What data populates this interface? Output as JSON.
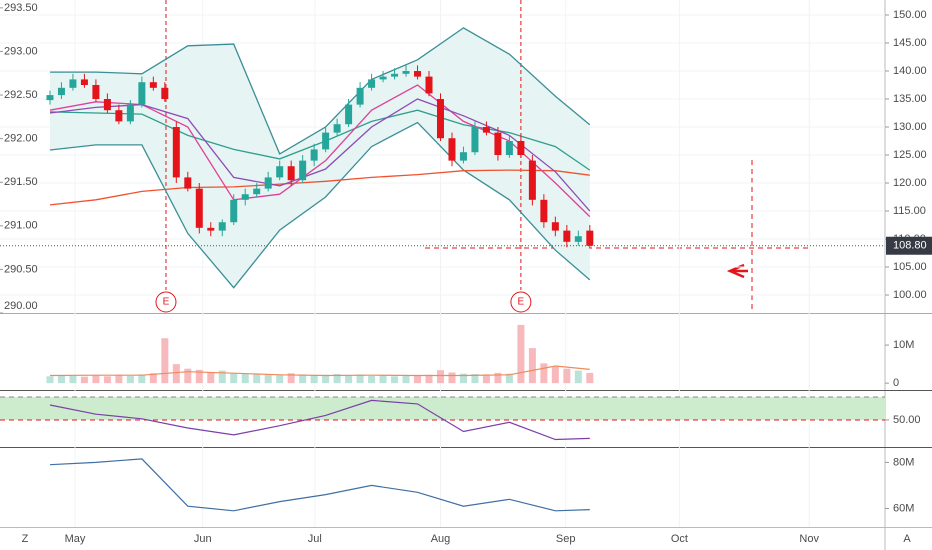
{
  "time_axis": {
    "xlim": [
      -4.35,
      72.7
    ],
    "xticks": [
      {
        "value": 2.18,
        "label": "May"
      },
      {
        "value": 13.3,
        "label": "Jun"
      },
      {
        "value": 23.06,
        "label": "Jul"
      },
      {
        "value": 34.0,
        "label": "Aug"
      },
      {
        "value": 44.9,
        "label": "Sep"
      },
      {
        "value": 54.8,
        "label": "Oct"
      },
      {
        "value": 66.1,
        "label": "Nov"
      }
    ]
  },
  "corner_labels": [
    "Z",
    "A"
  ],
  "chart_data": [
    {
      "type": "candlestick",
      "x": [
        0,
        1,
        2,
        3,
        4,
        5,
        6,
        7,
        8,
        9,
        10,
        11,
        12,
        13,
        14,
        15,
        16,
        17,
        18,
        19,
        20,
        21,
        22,
        23,
        24,
        25,
        26,
        27,
        28,
        29,
        30,
        31,
        32,
        33,
        34,
        35,
        36,
        37,
        38,
        39,
        40,
        41,
        42,
        43,
        44,
        45,
        46,
        47
      ],
      "open": [
        134.8,
        135.7,
        137,
        138.5,
        137.5,
        135,
        133,
        131,
        134,
        138,
        137,
        130,
        121,
        119,
        112,
        111.5,
        113,
        117,
        118,
        119,
        121,
        123,
        120.5,
        124,
        126,
        129,
        130.5,
        134,
        137,
        138.5,
        139,
        139.5,
        140,
        139,
        135,
        128,
        124,
        125.5,
        130,
        129,
        125,
        127.5,
        124,
        117,
        113,
        111.5,
        109.5,
        111.5
      ],
      "high": [
        136.5,
        138,
        139.5,
        139.5,
        138.5,
        136,
        134,
        134.8,
        139,
        139,
        138,
        131,
        122,
        120,
        113,
        113.5,
        118,
        119,
        120,
        122,
        124,
        124,
        125,
        127,
        130,
        131.5,
        135,
        138,
        139.5,
        140,
        140.5,
        141,
        141,
        140,
        136,
        129,
        126.5,
        131,
        131,
        130,
        128.5,
        128.5,
        125,
        118,
        114,
        112.5,
        111.5,
        112.5
      ],
      "low": [
        134,
        135,
        136.5,
        137,
        134.5,
        132.5,
        130.5,
        130.5,
        133.5,
        136.5,
        134.5,
        120,
        118.5,
        111,
        110.5,
        110.5,
        112.5,
        116,
        117.5,
        118.5,
        120.5,
        119.5,
        120,
        123,
        125.5,
        128.5,
        130,
        133.5,
        136.5,
        138,
        138.5,
        139,
        138.5,
        135.5,
        127.5,
        123,
        123.5,
        125,
        128.5,
        124,
        124.5,
        124.5,
        116,
        112,
        110.5,
        108.5,
        108.8,
        108.3
      ],
      "close": [
        135.7,
        137,
        138.5,
        137.5,
        135,
        133,
        131,
        134,
        138,
        137,
        135,
        121,
        119,
        112,
        111.5,
        113,
        117,
        118,
        119,
        121,
        123,
        120.5,
        124,
        126,
        129,
        130.5,
        134,
        137,
        138.5,
        139,
        139.5,
        140,
        139,
        136,
        128,
        124,
        125.5,
        130,
        129,
        125,
        127.5,
        125,
        117,
        113,
        111.5,
        109.5,
        110.5,
        108.8
      ],
      "up_color": "#26a69a",
      "down_color": "#e5141a",
      "ylim": [
        96.79,
        152.68
      ],
      "yticks": [
        {
          "value": 100,
          "label": "100.00"
        },
        {
          "value": 105,
          "label": "105.00"
        },
        {
          "value": 110,
          "label": "110.00"
        },
        {
          "value": 115,
          "label": "115.00"
        },
        {
          "value": 120,
          "label": "120.00"
        },
        {
          "value": 125,
          "label": "125.00"
        },
        {
          "value": 130,
          "label": "130.00"
        },
        {
          "value": 135,
          "label": "135.00"
        },
        {
          "value": 140,
          "label": "140.00"
        },
        {
          "value": 145,
          "label": "145.00"
        },
        {
          "value": 150,
          "label": "150.00"
        }
      ],
      "y2lim": [
        290.0,
        293.59
      ],
      "y2ticks": [
        {
          "value": 290.0,
          "label": "290.00"
        },
        {
          "value": 290.5,
          "label": "290.50"
        },
        {
          "value": 291.0,
          "label": "291.00"
        },
        {
          "value": 291.5,
          "label": "291.50"
        },
        {
          "value": 292.0,
          "label": "292.00"
        },
        {
          "value": 292.5,
          "label": "292.50"
        },
        {
          "value": 293.0,
          "label": "293.00"
        },
        {
          "value": 293.5,
          "label": "293.50"
        }
      ],
      "overlays": [
        {
          "x": [
            0,
            4,
            8,
            12,
            16,
            20,
            24,
            28,
            32,
            36,
            40,
            44,
            47
          ],
          "values": [
            139.8,
            139.8,
            139.5,
            144.5,
            144.8,
            125.2,
            130,
            138.5,
            142,
            147.7,
            143,
            135.5,
            130.4
          ],
          "color": "#3a8f97"
        },
        {
          "x": [
            0,
            4,
            8,
            12,
            16,
            20,
            24,
            28,
            32,
            36,
            40,
            44,
            47
          ],
          "values": [
            125.9,
            126.8,
            126.8,
            111,
            101.3,
            111.6,
            117.5,
            126.5,
            130.8,
            122.3,
            117,
            108,
            102.7
          ],
          "color": "#3a8f97"
        },
        {
          "x": [
            0,
            4,
            8,
            12,
            16,
            20,
            24,
            28,
            32,
            36,
            40,
            44,
            47
          ],
          "values": [
            132.7,
            132.5,
            132.3,
            128.5,
            126,
            124.3,
            127.5,
            131,
            133,
            130.4,
            129,
            126.5,
            122.3
          ],
          "color": "#2f9e8f"
        },
        {
          "x": [
            0,
            4,
            8,
            12,
            16,
            20,
            24,
            28,
            32,
            36,
            40,
            44,
            47
          ],
          "values": [
            116.1,
            117,
            118.5,
            119.2,
            119.3,
            119.8,
            120.3,
            121,
            121.5,
            122.2,
            122.3,
            122.2,
            121.4
          ],
          "color": "#f0522f"
        },
        {
          "x": [
            0,
            4,
            8,
            12,
            16,
            20,
            24,
            28,
            32,
            36,
            40,
            44,
            47
          ],
          "values": [
            133,
            134.5,
            134,
            130,
            117,
            118,
            124,
            133,
            137.5,
            131,
            127.5,
            120,
            114
          ],
          "color": "#e0409a"
        },
        {
          "x": [
            0,
            4,
            8,
            12,
            16,
            20,
            24,
            28,
            32,
            36,
            40,
            44,
            47
          ],
          "values": [
            132.5,
            133.5,
            134,
            131.5,
            121,
            119.5,
            122.5,
            130,
            135,
            132,
            128.5,
            122,
            115
          ],
          "color": "#8e4bb5"
        }
      ],
      "band_fill": "#e6f4f3",
      "last_value": {
        "value": 108.8,
        "label": "108.80"
      },
      "events": [
        {
          "x": 10.1,
          "label": "E"
        },
        {
          "x": 41.0,
          "label": "E"
        }
      ]
    },
    {
      "type": "volume",
      "x": [
        0,
        1,
        2,
        3,
        4,
        5,
        6,
        7,
        8,
        9,
        10,
        11,
        12,
        13,
        14,
        15,
        16,
        17,
        18,
        19,
        20,
        21,
        22,
        23,
        24,
        25,
        26,
        27,
        28,
        29,
        30,
        31,
        32,
        33,
        34,
        35,
        36,
        37,
        38,
        39,
        40,
        41,
        42,
        43,
        44,
        45,
        46,
        47
      ],
      "values": [
        1800000,
        2000000,
        1900000,
        1700000,
        2100000,
        1800000,
        2200000,
        1900000,
        2300000,
        2600000,
        11800000,
        5000000,
        3800000,
        3500000,
        2800000,
        3300000,
        2600000,
        2400000,
        2500000,
        2200000,
        2100000,
        2600000,
        2300000,
        2000000,
        2200000,
        2400000,
        2100000,
        2300000,
        1900000,
        2000000,
        1800000,
        2100000,
        1900000,
        2200000,
        3400000,
        2800000,
        2500000,
        2400000,
        2300000,
        2700000,
        2500000,
        15300000,
        9200000,
        5200000,
        4300000,
        3800000,
        3300000,
        2700000
      ],
      "up_color": "#b9e2d9",
      "down_color": "#f7b9bb",
      "ma": {
        "x": [
          0,
          4,
          8,
          12,
          16,
          20,
          24,
          28,
          32,
          36,
          40,
          44,
          47
        ],
        "values": [
          2000000,
          2100000,
          2100000,
          3000000,
          2600000,
          2200000,
          2000000,
          2100000,
          2000000,
          2000000,
          2200000,
          4500000,
          3600000
        ],
        "color": "#f08a5d"
      },
      "ylim": [
        -1800000,
        17900000
      ],
      "yticks": [
        0,
        {
          "value": 10000000,
          "label": "10M"
        }
      ]
    },
    {
      "type": "line",
      "x": [
        0,
        4,
        8,
        12,
        16,
        20,
        24,
        28,
        32,
        36,
        40,
        44,
        47
      ],
      "values": [
        63,
        55,
        51,
        43,
        37,
        45,
        54,
        67,
        64,
        40,
        48,
        33,
        34
      ],
      "color": "#7b3fa8",
      "ylim": [
        26.5,
        74.3
      ],
      "yticks": [
        {
          "value": 50,
          "label": "50.00"
        }
      ],
      "band": [
        50,
        70
      ],
      "band_color": "#cdebcd"
    },
    {
      "type": "line",
      "x": [
        0,
        4,
        8,
        12,
        16,
        20,
        24,
        28,
        32,
        36,
        40,
        44,
        47
      ],
      "values": [
        79000000,
        80000000,
        81500000,
        61000000,
        59000000,
        63000000,
        66000000,
        70000000,
        67000000,
        61000000,
        64000000,
        59000000,
        59500000
      ],
      "color": "#3f6fa3",
      "ylim": [
        52400000,
        85800000
      ],
      "yticks": [
        {
          "value": 60000000,
          "label": "60M"
        },
        {
          "value": 80000000,
          "label": "80M"
        }
      ]
    }
  ]
}
